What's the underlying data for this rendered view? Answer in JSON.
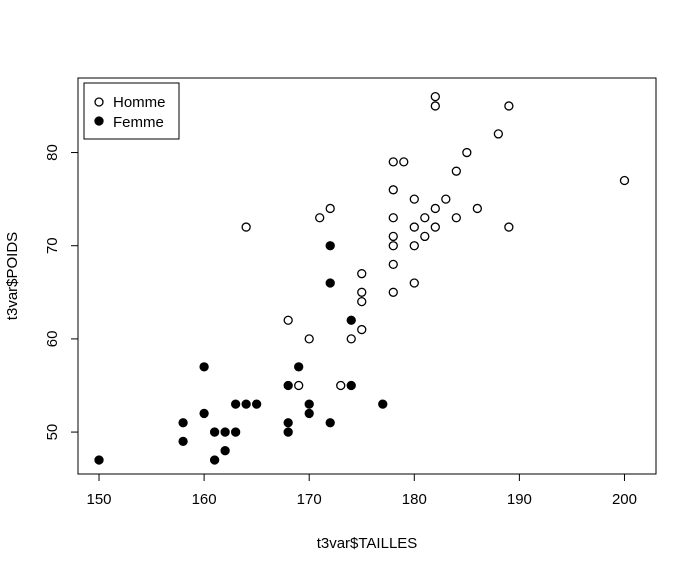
{
  "chart_data": {
    "type": "scatter",
    "xlabel": "t3var$TAILLES",
    "ylabel": "t3var$POIDS",
    "xlim": [
      148,
      203
    ],
    "ylim": [
      45.5,
      88
    ],
    "xticks": [
      150,
      160,
      170,
      180,
      190,
      200
    ],
    "yticks": [
      50,
      60,
      70,
      80
    ],
    "legend_position": "top-left",
    "grid": false,
    "series": [
      {
        "name": "Homme",
        "marker": "open-circle",
        "points": [
          [
            164,
            72
          ],
          [
            168,
            62
          ],
          [
            169,
            55
          ],
          [
            170,
            60
          ],
          [
            171,
            73
          ],
          [
            172,
            74
          ],
          [
            173,
            55
          ],
          [
            174,
            60
          ],
          [
            175,
            67
          ],
          [
            175,
            65
          ],
          [
            175,
            64
          ],
          [
            175,
            61
          ],
          [
            178,
            79
          ],
          [
            178,
            76
          ],
          [
            178,
            73
          ],
          [
            178,
            71
          ],
          [
            178,
            70
          ],
          [
            178,
            68
          ],
          [
            178,
            65
          ],
          [
            179,
            79
          ],
          [
            180,
            75
          ],
          [
            180,
            72
          ],
          [
            180,
            70
          ],
          [
            180,
            66
          ],
          [
            181,
            73
          ],
          [
            181,
            71
          ],
          [
            182,
            86
          ],
          [
            182,
            85
          ],
          [
            182,
            74
          ],
          [
            182,
            72
          ],
          [
            183,
            75
          ],
          [
            184,
            78
          ],
          [
            184,
            73
          ],
          [
            185,
            80
          ],
          [
            186,
            74
          ],
          [
            188,
            82
          ],
          [
            189,
            85
          ],
          [
            189,
            72
          ],
          [
            200,
            77
          ]
        ]
      },
      {
        "name": "Femme",
        "marker": "filled-circle",
        "points": [
          [
            150,
            47
          ],
          [
            158,
            51
          ],
          [
            158,
            49
          ],
          [
            160,
            57
          ],
          [
            160,
            52
          ],
          [
            161,
            50
          ],
          [
            161,
            47
          ],
          [
            162,
            50
          ],
          [
            162,
            48
          ],
          [
            163,
            53
          ],
          [
            163,
            50
          ],
          [
            164,
            53
          ],
          [
            165,
            53
          ],
          [
            168,
            55
          ],
          [
            168,
            51
          ],
          [
            168,
            50
          ],
          [
            169,
            57
          ],
          [
            170,
            53
          ],
          [
            170,
            52
          ],
          [
            172,
            70
          ],
          [
            172,
            66
          ],
          [
            172,
            51
          ],
          [
            174,
            62
          ],
          [
            174,
            55
          ],
          [
            177,
            53
          ]
        ]
      }
    ]
  }
}
